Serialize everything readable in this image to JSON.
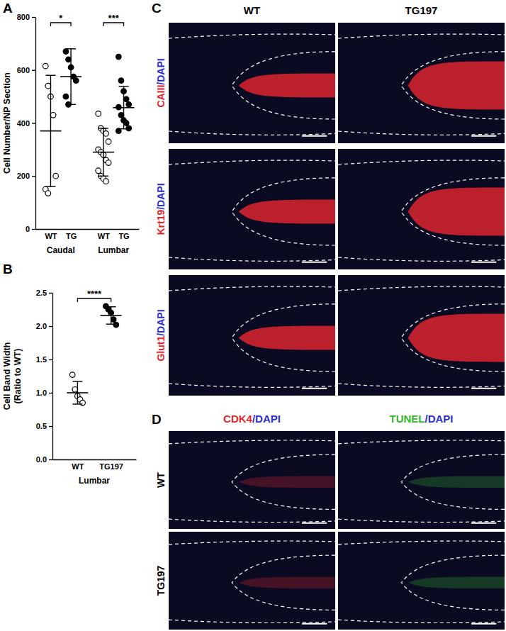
{
  "chart_data": [
    {
      "panel": "A",
      "type": "strip",
      "y_label": "Cell Number/NP Section",
      "categories": [
        "WT",
        "TG",
        "WT",
        "TG"
      ],
      "groups": [
        {
          "label": "Caudal",
          "from": 0,
          "to": 1
        },
        {
          "label": "Lumbar",
          "from": 2,
          "to": 3
        }
      ],
      "values": [
        [
          615,
          540,
          500,
          430,
          200,
          150,
          135
        ],
        [
          670,
          640,
          610,
          575,
          560,
          500,
          470
        ],
        [
          435,
          380,
          370,
          360,
          330,
          300,
          290,
          280,
          260,
          250,
          220,
          200,
          190,
          180
        ],
        [
          650,
          560,
          520,
          490,
          470,
          460,
          430,
          410,
          400,
          380,
          370
        ]
      ],
      "mean": [
        370,
        575,
        290,
        458
      ],
      "sd": [
        210,
        105,
        90,
        80
      ],
      "colors": [
        "#ffffff",
        "#000000",
        "#ffffff",
        "#000000"
      ],
      "ylim": [
        0,
        800
      ],
      "yticks": [
        0,
        200,
        400,
        600,
        800
      ],
      "annotations": [
        {
          "text": "*",
          "from": 0,
          "to": 1
        },
        {
          "text": "***",
          "from": 2,
          "to": 3
        }
      ]
    },
    {
      "panel": "B",
      "type": "strip",
      "y_label": [
        "Cell Band Width",
        "(Ratio to WT)"
      ],
      "categories": [
        "WT",
        "TG197"
      ],
      "groups": [
        {
          "label": "Lumbar",
          "from": 0,
          "to": 1
        }
      ],
      "values": [
        [
          1.27,
          1.05,
          0.95,
          0.9,
          0.85
        ],
        [
          2.3,
          2.25,
          2.2,
          2.1,
          2.02
        ]
      ],
      "mean": [
        1.0,
        2.16
      ],
      "sd": [
        0.17,
        0.13
      ],
      "colors": [
        "#ffffff",
        "#000000"
      ],
      "ylim": [
        0,
        2.5
      ],
      "yticks": [
        {
          "value": 0,
          "label": "0.0"
        },
        {
          "value": 0.5,
          "label": "0.5"
        },
        {
          "value": 1,
          "label": "1.0"
        },
        {
          "value": 1.5,
          "label": "1.5"
        },
        {
          "value": 2,
          "label": "2.0"
        },
        {
          "value": 2.5,
          "label": "2.5"
        }
      ],
      "annotations": [
        {
          "text": "****",
          "from": 0,
          "to": 1
        }
      ]
    }
  ],
  "panels": [
    {
      "panel": "C",
      "columns": [
        "WT",
        "TG197"
      ],
      "rows": [
        {
          "parts": [
            {
              "text": "CAIII",
              "color": "#e3262e"
            },
            {
              "text": "/DAPI",
              "color": "#2c2fd0"
            }
          ]
        },
        {
          "parts": [
            {
              "text": "Krt19",
              "color": "#e3262e"
            },
            {
              "text": "/DAPI",
              "color": "#2c2fd0"
            }
          ]
        },
        {
          "parts": [
            {
              "text": "Glut1",
              "color": "#e3262e"
            },
            {
              "text": "/DAPI",
              "color": "#2c2fd0"
            }
          ]
        }
      ]
    },
    {
      "panel": "D",
      "columns": [
        {
          "parts": [
            {
              "text": "CDK4",
              "color": "#e3262e"
            },
            {
              "text": "/DAPI",
              "color": "#2c2fd0"
            }
          ]
        },
        {
          "parts": [
            {
              "text": "TUNEL",
              "color": "#35b52f"
            },
            {
              "text": "/DAPI",
              "color": "#2c2fd0"
            }
          ]
        }
      ],
      "rows": [
        "WT",
        "TG197"
      ]
    }
  ]
}
